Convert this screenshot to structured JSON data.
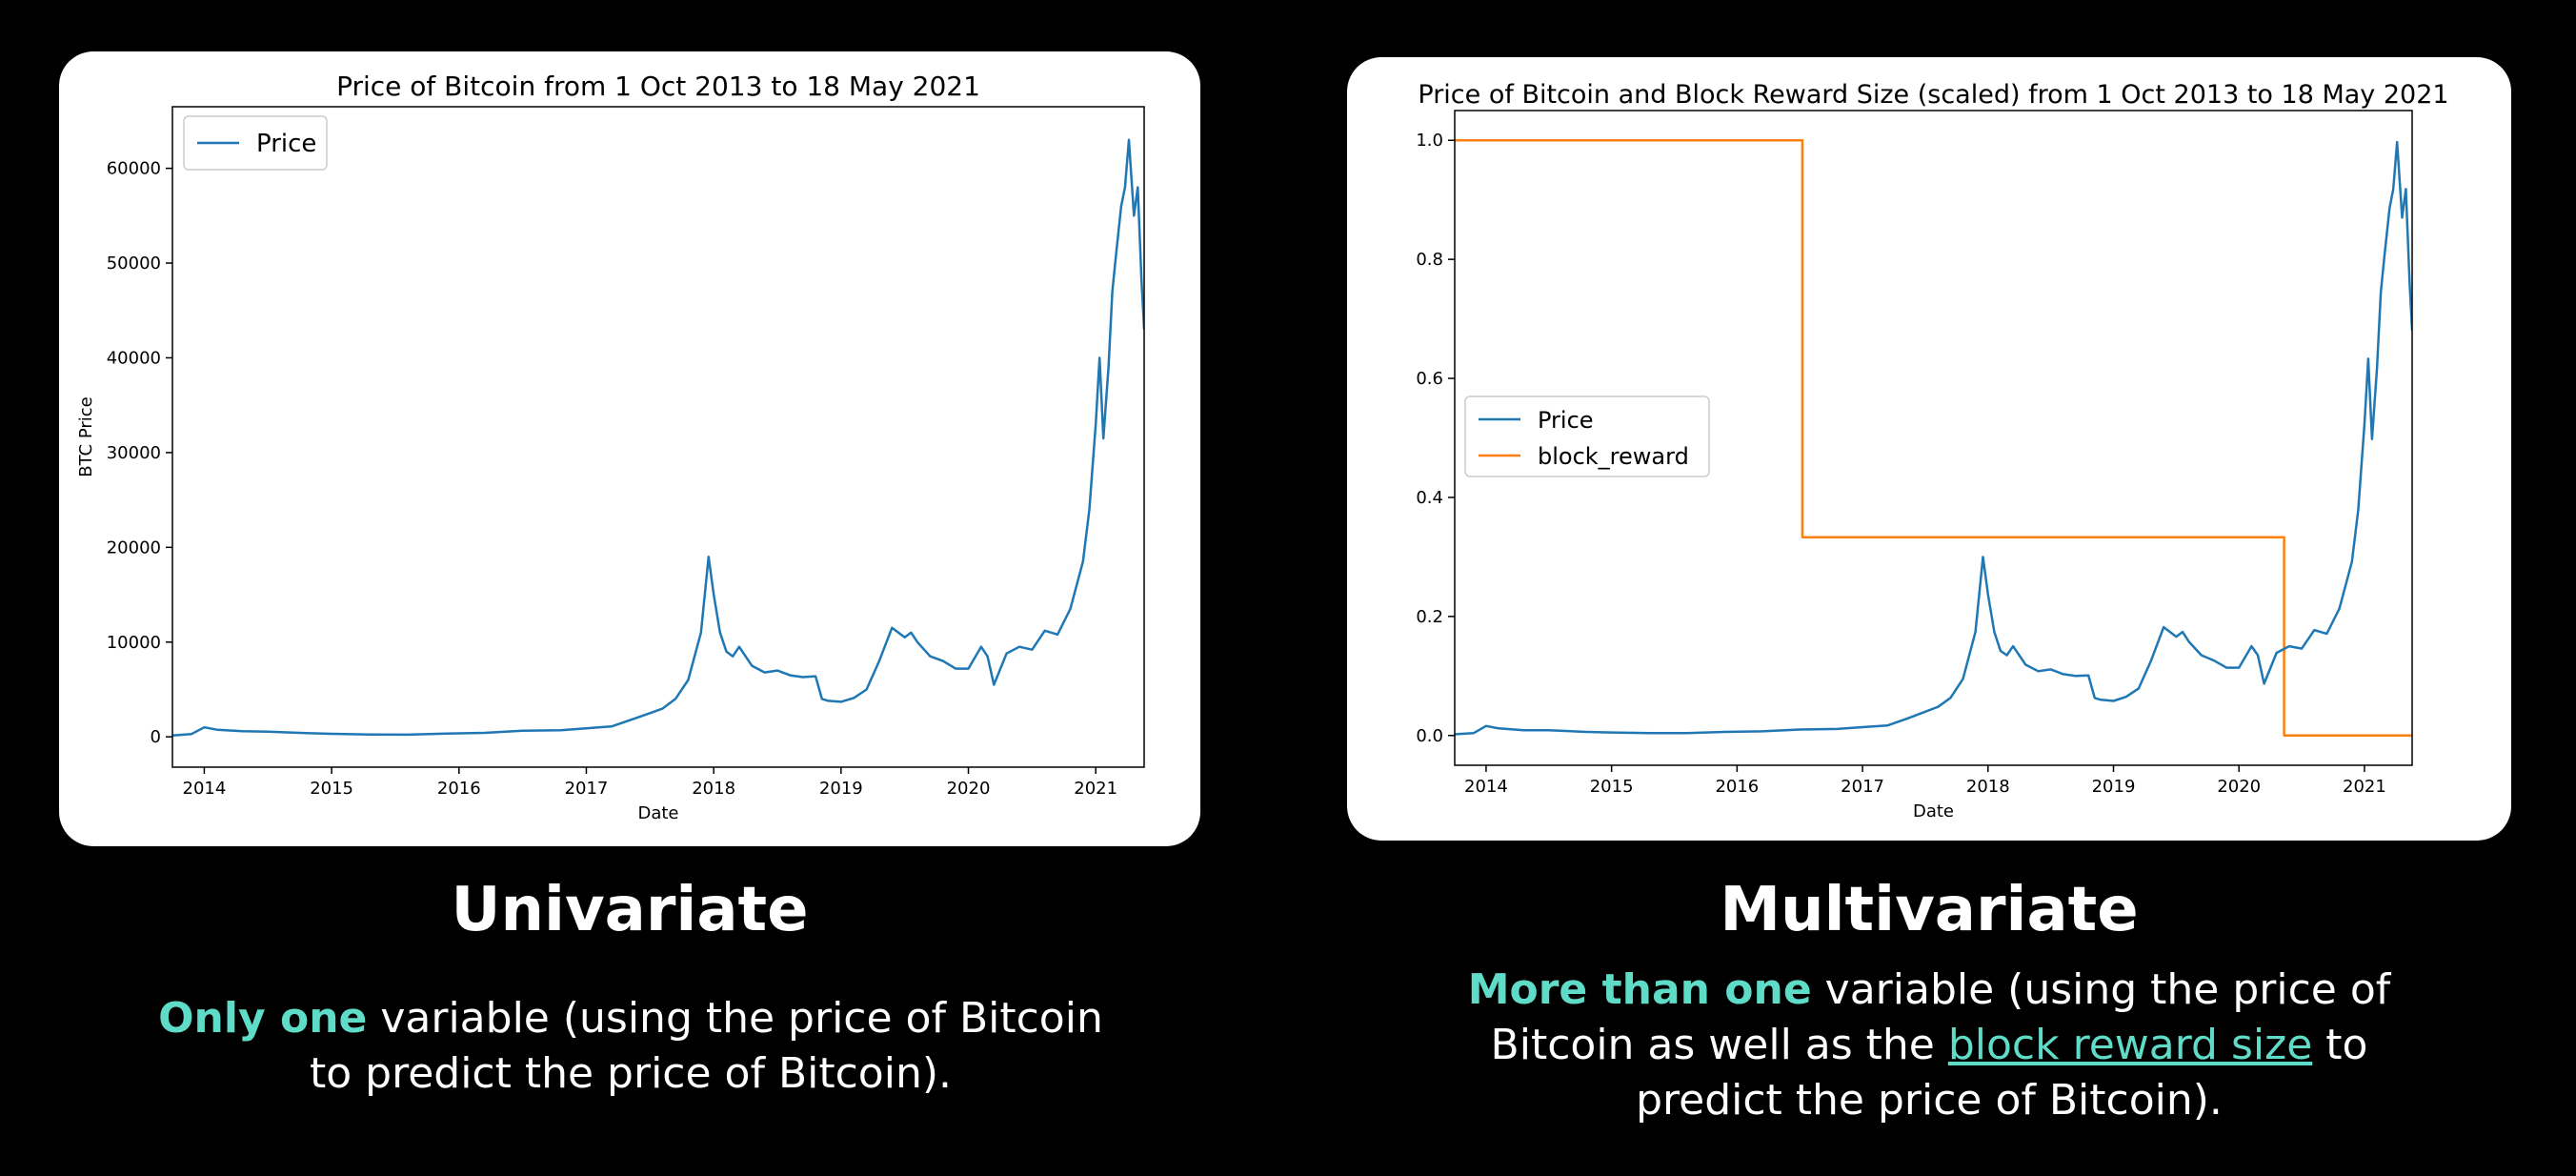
{
  "colors": {
    "price": "#1f77b4",
    "block_reward": "#ff7f0e",
    "accent": "#5fdcc8"
  },
  "left": {
    "heading": "Univariate",
    "highlight": "Only one",
    "rest": " variable (using the price of Bitcoin to predict the price of Bitcoin)."
  },
  "right": {
    "heading": "Multivariate",
    "highlight": "More than one",
    "mid": " variable (using the price of Bitcoin as well as the ",
    "link": "block reward size",
    "end": " to predict the price of Bitcoin)."
  },
  "chart_data": [
    {
      "type": "line",
      "title": "Price of Bitcoin from 1 Oct 2013 to 18 May 2021",
      "xlabel": "Date",
      "ylabel": "BTC Price",
      "xlim": [
        2013.75,
        2021.38
      ],
      "ylim": [
        -3200,
        66500
      ],
      "xticks": [
        "2014",
        "2015",
        "2016",
        "2017",
        "2018",
        "2019",
        "2020",
        "2021"
      ],
      "yticks": [
        "0",
        "10000",
        "20000",
        "30000",
        "40000",
        "50000",
        "60000"
      ],
      "legend": {
        "position": "top-left",
        "entries": [
          "Price"
        ]
      },
      "series": [
        {
          "name": "Price",
          "x": [
            2013.75,
            2013.9,
            2014.0,
            2014.1,
            2014.3,
            2014.5,
            2014.8,
            2015.0,
            2015.3,
            2015.6,
            2015.9,
            2016.2,
            2016.5,
            2016.8,
            2017.0,
            2017.2,
            2017.35,
            2017.5,
            2017.6,
            2017.7,
            2017.8,
            2017.9,
            2017.96,
            2018.0,
            2018.05,
            2018.1,
            2018.15,
            2018.2,
            2018.3,
            2018.4,
            2018.5,
            2018.6,
            2018.7,
            2018.8,
            2018.85,
            2018.9,
            2019.0,
            2019.1,
            2019.2,
            2019.3,
            2019.4,
            2019.5,
            2019.55,
            2019.6,
            2019.7,
            2019.8,
            2019.9,
            2020.0,
            2020.1,
            2020.15,
            2020.2,
            2020.3,
            2020.4,
            2020.5,
            2020.6,
            2020.7,
            2020.8,
            2020.9,
            2020.95,
            2021.0,
            2021.03,
            2021.06,
            2021.1,
            2021.13,
            2021.16,
            2021.2,
            2021.23,
            2021.26,
            2021.3,
            2021.33,
            2021.36,
            2021.38
          ],
          "values": [
            140,
            300,
            1000,
            750,
            600,
            550,
            400,
            320,
            250,
            230,
            350,
            420,
            650,
            700,
            900,
            1100,
            1800,
            2500,
            3000,
            4000,
            6000,
            11000,
            19000,
            15000,
            11000,
            9000,
            8500,
            9500,
            7500,
            6800,
            7000,
            6500,
            6300,
            6400,
            4000,
            3800,
            3700,
            4100,
            5000,
            8000,
            11500,
            10500,
            11000,
            10000,
            8500,
            8000,
            7200,
            7200,
            9500,
            8500,
            5500,
            8800,
            9500,
            9200,
            11200,
            10800,
            13500,
            18500,
            24000,
            33000,
            40000,
            31500,
            39000,
            47000,
            51000,
            56000,
            58000,
            63000,
            55000,
            58000,
            48000,
            43000
          ]
        }
      ]
    },
    {
      "type": "line",
      "title": "Price of Bitcoin and Block Reward Size (scaled) from 1 Oct 2013 to 18 May 2021",
      "xlabel": "Date",
      "ylabel": "",
      "xlim": [
        2013.75,
        2021.38
      ],
      "ylim": [
        -0.05,
        1.05
      ],
      "xticks": [
        "2014",
        "2015",
        "2016",
        "2017",
        "2018",
        "2019",
        "2020",
        "2021"
      ],
      "yticks": [
        "0.0",
        "0.2",
        "0.4",
        "0.6",
        "0.8",
        "1.0"
      ],
      "legend": {
        "position": "center-left",
        "entries": [
          "Price",
          "block_reward"
        ]
      },
      "series": [
        {
          "name": "Price",
          "x": [
            2013.75,
            2013.9,
            2014.0,
            2014.1,
            2014.3,
            2014.5,
            2014.8,
            2015.0,
            2015.3,
            2015.6,
            2015.9,
            2016.2,
            2016.5,
            2016.8,
            2017.0,
            2017.2,
            2017.35,
            2017.5,
            2017.6,
            2017.7,
            2017.8,
            2017.9,
            2017.96,
            2018.0,
            2018.05,
            2018.1,
            2018.15,
            2018.2,
            2018.3,
            2018.4,
            2018.5,
            2018.6,
            2018.7,
            2018.8,
            2018.85,
            2018.9,
            2019.0,
            2019.1,
            2019.2,
            2019.3,
            2019.4,
            2019.5,
            2019.55,
            2019.6,
            2019.7,
            2019.8,
            2019.9,
            2020.0,
            2020.1,
            2020.15,
            2020.2,
            2020.3,
            2020.4,
            2020.5,
            2020.6,
            2020.7,
            2020.8,
            2020.9,
            2020.95,
            2021.0,
            2021.03,
            2021.06,
            2021.1,
            2021.13,
            2021.16,
            2021.2,
            2021.23,
            2021.26,
            2021.3,
            2021.33,
            2021.36,
            2021.38
          ],
          "values": [
            0.002,
            0.004,
            0.016,
            0.012,
            0.009,
            0.009,
            0.006,
            0.005,
            0.004,
            0.004,
            0.006,
            0.007,
            0.01,
            0.011,
            0.014,
            0.017,
            0.028,
            0.04,
            0.048,
            0.063,
            0.095,
            0.174,
            0.3,
            0.237,
            0.174,
            0.142,
            0.135,
            0.15,
            0.119,
            0.108,
            0.111,
            0.103,
            0.1,
            0.101,
            0.063,
            0.06,
            0.058,
            0.065,
            0.079,
            0.126,
            0.182,
            0.166,
            0.174,
            0.158,
            0.135,
            0.126,
            0.114,
            0.114,
            0.15,
            0.135,
            0.087,
            0.139,
            0.15,
            0.146,
            0.177,
            0.171,
            0.213,
            0.292,
            0.379,
            0.522,
            0.633,
            0.498,
            0.617,
            0.744,
            0.807,
            0.886,
            0.918,
            0.997,
            0.87,
            0.918,
            0.759,
            0.68
          ]
        },
        {
          "name": "block_reward",
          "x": [
            2013.75,
            2016.52,
            2016.52,
            2020.36,
            2020.36,
            2021.38
          ],
          "values": [
            1.0,
            1.0,
            0.333,
            0.333,
            0.0,
            0.0
          ]
        }
      ]
    }
  ]
}
